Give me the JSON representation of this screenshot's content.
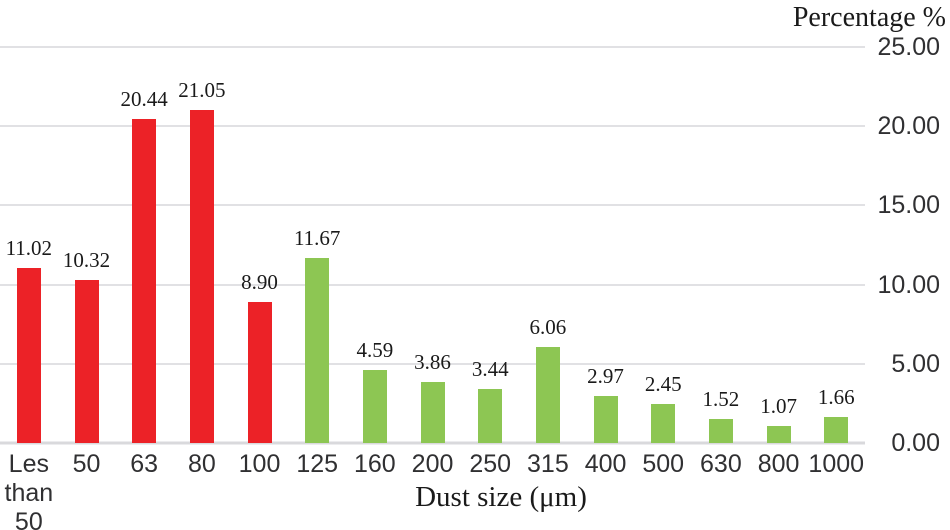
{
  "chart_data": {
    "type": "bar",
    "title": "Percentage %",
    "xlabel": "Dust size (μm)",
    "ylabel": "Percentage %",
    "categories": [
      "Les\nthan\n50",
      "50",
      "63",
      "80",
      "100",
      "125",
      "160",
      "200",
      "250",
      "315",
      "400",
      "500",
      "630",
      "800",
      "1000"
    ],
    "values": [
      11.02,
      10.32,
      20.44,
      21.05,
      8.9,
      11.67,
      4.59,
      3.86,
      3.44,
      6.06,
      2.97,
      2.45,
      1.52,
      1.07,
      1.66
    ],
    "value_labels": [
      "11.02",
      "10.32",
      "20.44",
      "21.05",
      "8.90",
      "11.67",
      "4.59",
      "3.86",
      "3.44",
      "6.06",
      "2.97",
      "2.45",
      "1.52",
      "1.07",
      "1.66"
    ],
    "bar_colors": [
      "#EC2227",
      "#EC2227",
      "#EC2227",
      "#EC2227",
      "#EC2227",
      "#8DC653",
      "#8DC653",
      "#8DC653",
      "#8DC653",
      "#8DC653",
      "#8DC653",
      "#8DC653",
      "#8DC653",
      "#8DC653",
      "#8DC653"
    ],
    "colors": {
      "red_bars": "#EC2227",
      "green_bars": "#8DC653",
      "gridline": "#E1E1E4",
      "baseline": "#D9D9DC"
    },
    "yticks": [
      "25.00",
      "20.00",
      "15.00",
      "10.00",
      "5.00",
      "0.00"
    ],
    "ylim": [
      0,
      25
    ],
    "grid": true,
    "legend": false
  }
}
